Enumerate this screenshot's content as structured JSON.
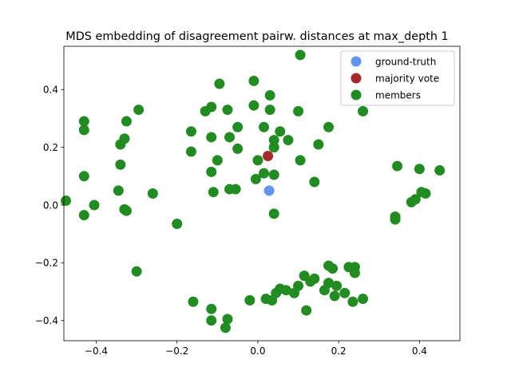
{
  "chart_data": {
    "type": "scatter",
    "title": "MDS embedding of disagreement pairw. distances at max_depth 1",
    "xlabel": "",
    "ylabel": "",
    "xlim": [
      -0.48,
      0.5
    ],
    "ylim": [
      -0.47,
      0.55
    ],
    "xticks": [
      -0.4,
      -0.2,
      0.0,
      0.2,
      0.4
    ],
    "yticks": [
      -0.4,
      -0.2,
      0.0,
      0.2,
      0.4
    ],
    "xtick_labels": [
      "−0.4",
      "−0.2",
      "0.0",
      "0.2",
      "0.4"
    ],
    "ytick_labels": [
      "−0.4",
      "−0.2",
      "0.0",
      "0.2",
      "0.4"
    ],
    "grid": false,
    "legend_position": "top-right",
    "series": [
      {
        "name": "members",
        "color": "#228b22",
        "points": [
          [
            0.105,
            0.52
          ],
          [
            -0.01,
            0.43
          ],
          [
            -0.095,
            0.42
          ],
          [
            0.03,
            0.38
          ],
          [
            -0.115,
            0.34
          ],
          [
            -0.01,
            0.345
          ],
          [
            -0.075,
            0.33
          ],
          [
            -0.13,
            0.325
          ],
          [
            0.03,
            0.33
          ],
          [
            0.1,
            0.325
          ],
          [
            0.26,
            0.325
          ],
          [
            -0.295,
            0.33
          ],
          [
            -0.325,
            0.29
          ],
          [
            -0.165,
            0.255
          ],
          [
            -0.05,
            0.27
          ],
          [
            0.015,
            0.27
          ],
          [
            0.055,
            0.255
          ],
          [
            0.175,
            0.27
          ],
          [
            -0.115,
            0.235
          ],
          [
            -0.07,
            0.235
          ],
          [
            0.04,
            0.225
          ],
          [
            0.075,
            0.225
          ],
          [
            -0.33,
            0.23
          ],
          [
            -0.34,
            0.21
          ],
          [
            0.04,
            0.2
          ],
          [
            0.15,
            0.21
          ],
          [
            -0.05,
            0.195
          ],
          [
            -0.165,
            0.185
          ],
          [
            0.0,
            0.155
          ],
          [
            -0.1,
            0.155
          ],
          [
            0.105,
            0.155
          ],
          [
            -0.34,
            0.14
          ],
          [
            0.345,
            0.135
          ],
          [
            0.4,
            0.125
          ],
          [
            0.45,
            0.12
          ],
          [
            -0.115,
            0.115
          ],
          [
            0.015,
            0.11
          ],
          [
            0.04,
            0.105
          ],
          [
            -0.005,
            0.09
          ],
          [
            0.14,
            0.08
          ],
          [
            -0.43,
            0.29
          ],
          [
            -0.43,
            0.26
          ],
          [
            -0.43,
            0.1
          ],
          [
            -0.345,
            0.05
          ],
          [
            -0.26,
            0.04
          ],
          [
            -0.07,
            0.055
          ],
          [
            -0.055,
            0.055
          ],
          [
            -0.11,
            0.045
          ],
          [
            0.405,
            0.045
          ],
          [
            0.415,
            0.04
          ],
          [
            0.39,
            0.02
          ],
          [
            0.38,
            0.01
          ],
          [
            -0.475,
            0.015
          ],
          [
            -0.405,
            0.0
          ],
          [
            -0.33,
            -0.015
          ],
          [
            -0.325,
            -0.02
          ],
          [
            0.04,
            -0.03
          ],
          [
            -0.43,
            -0.035
          ],
          [
            0.34,
            -0.04
          ],
          [
            0.34,
            -0.05
          ],
          [
            -0.2,
            -0.065
          ],
          [
            -0.3,
            -0.23
          ],
          [
            0.175,
            -0.21
          ],
          [
            0.225,
            -0.215
          ],
          [
            0.24,
            -0.215
          ],
          [
            0.185,
            -0.22
          ],
          [
            0.24,
            -0.235
          ],
          [
            0.115,
            -0.245
          ],
          [
            0.14,
            -0.255
          ],
          [
            0.13,
            -0.265
          ],
          [
            0.175,
            -0.27
          ],
          [
            0.1,
            -0.28
          ],
          [
            0.195,
            -0.28
          ],
          [
            0.165,
            -0.295
          ],
          [
            0.055,
            -0.29
          ],
          [
            0.07,
            -0.295
          ],
          [
            0.09,
            -0.305
          ],
          [
            0.215,
            -0.305
          ],
          [
            0.045,
            -0.305
          ],
          [
            0.19,
            -0.315
          ],
          [
            0.02,
            -0.325
          ],
          [
            0.035,
            -0.33
          ],
          [
            0.26,
            -0.325
          ],
          [
            0.235,
            -0.335
          ],
          [
            -0.02,
            -0.33
          ],
          [
            -0.16,
            -0.335
          ],
          [
            -0.115,
            -0.36
          ],
          [
            0.12,
            -0.365
          ],
          [
            -0.075,
            -0.395
          ],
          [
            -0.115,
            -0.4
          ],
          [
            -0.08,
            -0.425
          ]
        ]
      },
      {
        "name": "majority vote",
        "color": "#a52a2a",
        "points": [
          [
            0.025,
            0.17
          ]
        ]
      },
      {
        "name": "ground-truth",
        "color": "#6495ed",
        "points": [
          [
            0.028,
            0.05
          ]
        ]
      }
    ],
    "legend_order": [
      "ground-truth",
      "majority vote",
      "members"
    ]
  }
}
